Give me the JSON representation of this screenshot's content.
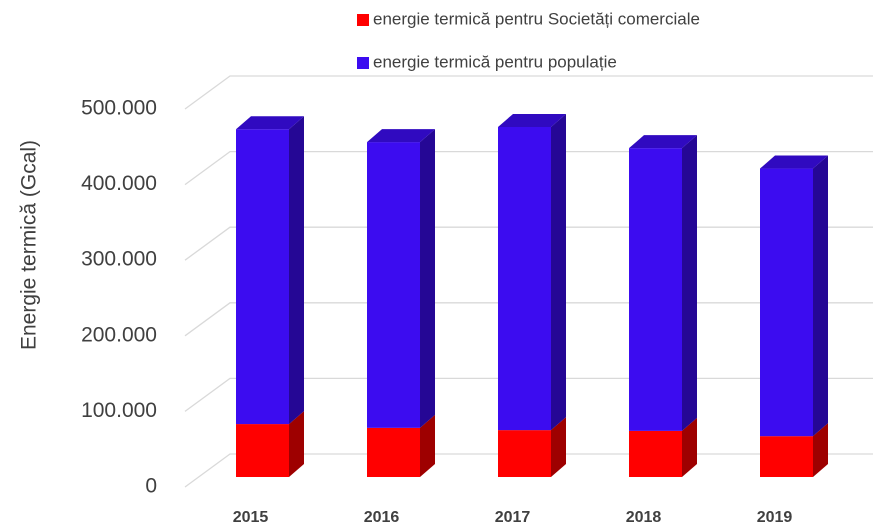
{
  "chart_data": {
    "type": "bar3d_stacked",
    "y_label": "Energie termică (Gcal)",
    "categories": [
      "2015",
      "2016",
      "2017",
      "2018",
      "2019"
    ],
    "series": [
      {
        "name": "energie termică pentru Societăți comerciale",
        "color": "#ff0000",
        "values": [
          70000,
          65000,
          62000,
          61000,
          54000
        ]
      },
      {
        "name": "energie termică pentru populație",
        "color": "#3c0cf0",
        "values": [
          390000,
          378000,
          401000,
          374000,
          354000
        ]
      }
    ],
    "ylim": [
      0,
      500000
    ],
    "yticks": [
      0,
      {
        "value": 100000,
        "label": "100.000"
      },
      {
        "value": 200000,
        "label": "200.000"
      },
      {
        "value": 300000,
        "label": "300.000"
      },
      {
        "value": 400000,
        "label": "400.000"
      },
      {
        "value": 500000,
        "label": "500.000"
      }
    ],
    "grid": true
  }
}
